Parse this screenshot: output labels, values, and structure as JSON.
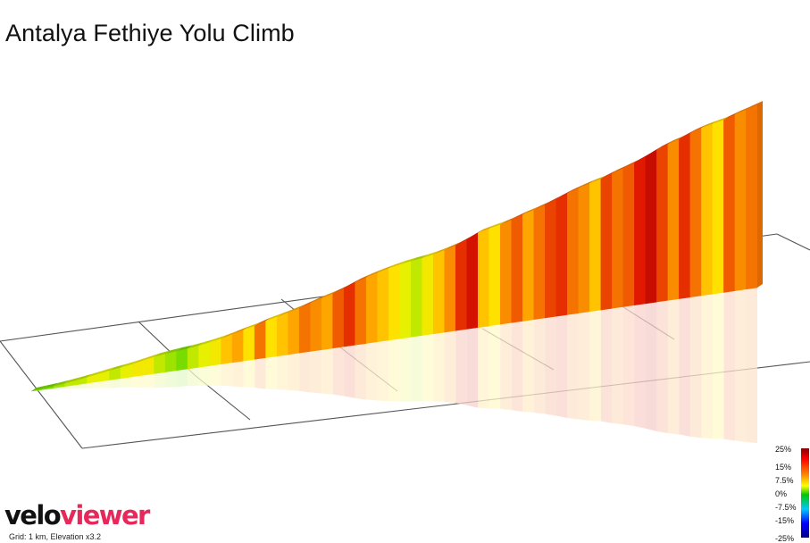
{
  "title": "Antalya Fethiye Yolu Climb",
  "footer": {
    "logo_velo": "velo",
    "logo_viewer": "viewer",
    "grid_note": "Grid: 1 km, Elevation x3.2"
  },
  "legend": {
    "labels": [
      "25%",
      "15%",
      "7.5%",
      "0%",
      "-7.5%",
      "-15%",
      "-25%"
    ]
  },
  "colors": {
    "logo_accent": "#e8275a",
    "grid_line": "#555555"
  },
  "chart_data": {
    "type": "area",
    "title": "Antalya Fethiye Yolu Climb",
    "xlabel": "",
    "ylabel": "",
    "grid": true,
    "grid_spacing": "1 km",
    "vertical_exaggeration": 3.2,
    "gradient_segments": [
      3,
      3,
      4,
      5,
      5,
      6,
      6,
      5,
      6,
      7,
      7,
      5,
      4,
      3,
      5,
      6,
      7,
      9,
      10,
      8,
      12,
      8,
      9,
      10,
      12,
      11,
      10,
      13,
      15,
      12,
      10,
      9,
      8,
      6,
      5,
      7,
      9,
      11,
      15,
      17,
      9,
      8,
      11,
      13,
      10,
      12,
      14,
      15,
      12,
      11,
      9,
      14,
      12,
      13,
      16,
      18,
      14,
      11,
      15,
      12,
      9,
      8,
      13,
      11,
      12
    ],
    "color_scale": [
      {
        "grade": 25,
        "label": "25%"
      },
      {
        "grade": 15,
        "label": "15%"
      },
      {
        "grade": 7.5,
        "label": "7.5%"
      },
      {
        "grade": 0,
        "label": "0%"
      },
      {
        "grade": -7.5,
        "label": "-7.5%"
      },
      {
        "grade": -15,
        "label": "-15%"
      },
      {
        "grade": -25,
        "label": "-25%"
      }
    ]
  }
}
